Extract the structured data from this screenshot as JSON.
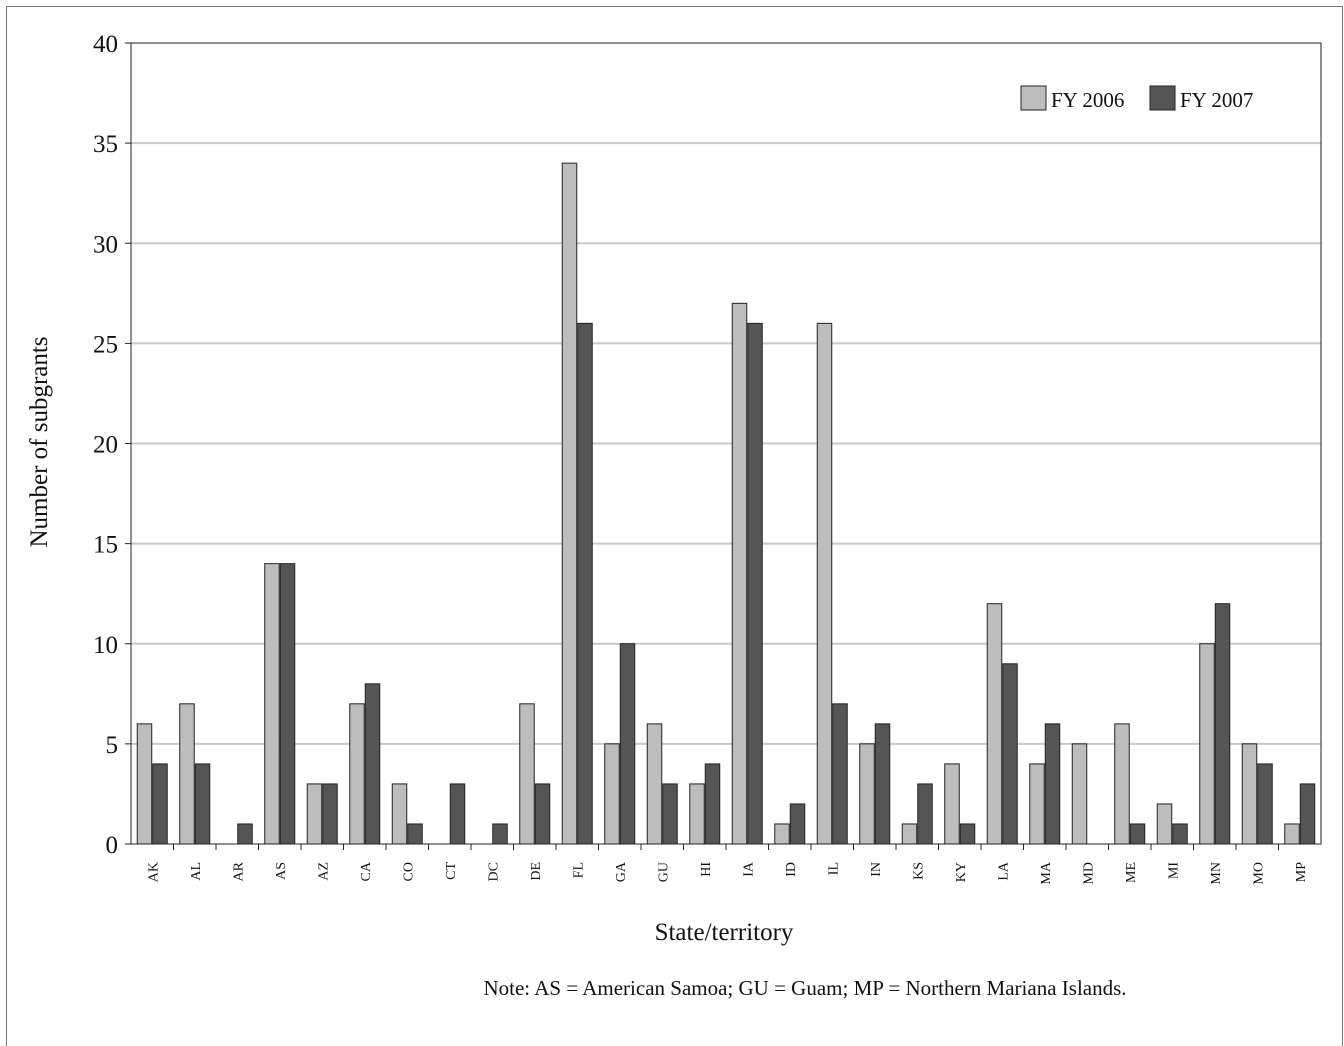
{
  "chart_data": {
    "type": "bar",
    "xlabel": "State/territory",
    "ylabel": "Number of subgrants",
    "ylim": [
      0,
      40
    ],
    "yticks": [
      0,
      5,
      10,
      15,
      20,
      25,
      30,
      35,
      40
    ],
    "grid": true,
    "legend_position": "top-right",
    "categories": [
      "AK",
      "AL",
      "AR",
      "AS",
      "AZ",
      "CA",
      "CO",
      "CT",
      "DC",
      "DE",
      "FL",
      "GA",
      "GU",
      "HI",
      "IA",
      "ID",
      "IL",
      "IN",
      "KS",
      "KY",
      "LA",
      "MA",
      "MD",
      "ME",
      "MI",
      "MN",
      "MO",
      "MP"
    ],
    "series": [
      {
        "name": "FY 2006",
        "color": "#bdbdbd",
        "values": [
          6,
          7,
          0,
          14,
          3,
          7,
          3,
          0,
          0,
          7,
          34,
          5,
          6,
          3,
          27,
          1,
          26,
          5,
          1,
          4,
          12,
          4,
          5,
          6,
          2,
          10,
          5,
          1
        ]
      },
      {
        "name": "FY 2007",
        "color": "#555555",
        "values": [
          4,
          4,
          1,
          14,
          3,
          8,
          1,
          3,
          1,
          3,
          26,
          10,
          3,
          4,
          26,
          2,
          7,
          6,
          3,
          1,
          9,
          6,
          0,
          1,
          1,
          12,
          4,
          3
        ]
      }
    ],
    "note": "Note: AS = American Samoa; GU = Guam; MP = Northern Mariana Islands."
  }
}
